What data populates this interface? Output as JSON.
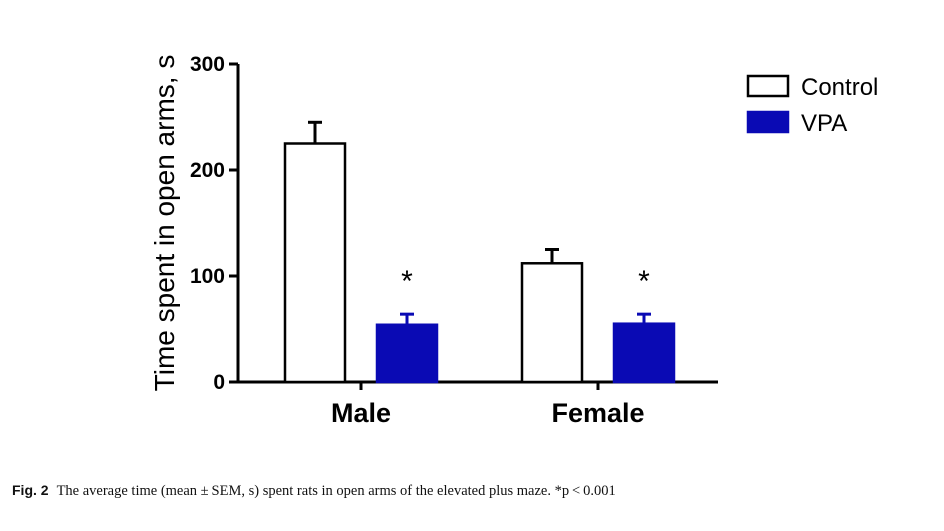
{
  "chart_data": {
    "type": "bar",
    "ylabel": "Time spent in open arms, s",
    "ylim": [
      0,
      300
    ],
    "yticks": [
      0,
      100,
      200,
      300
    ],
    "categories": [
      "Male",
      "Female"
    ],
    "series": [
      {
        "name": "Control",
        "values": [
          225,
          112
        ],
        "sem": [
          20,
          13
        ],
        "color": "#ffffff",
        "significant": [
          false,
          false
        ]
      },
      {
        "name": "VPA",
        "values": [
          54,
          55
        ],
        "sem": [
          10,
          9
        ],
        "color": "#0a0ab4",
        "significant": [
          true,
          true
        ]
      }
    ],
    "significance_marker": "*",
    "legend_position": "top-right",
    "grid": false
  },
  "caption": {
    "label": "Fig. 2",
    "text": "The average time (mean ± SEM, s) spent rats in open arms of the elevated plus maze. *p < 0.001"
  }
}
